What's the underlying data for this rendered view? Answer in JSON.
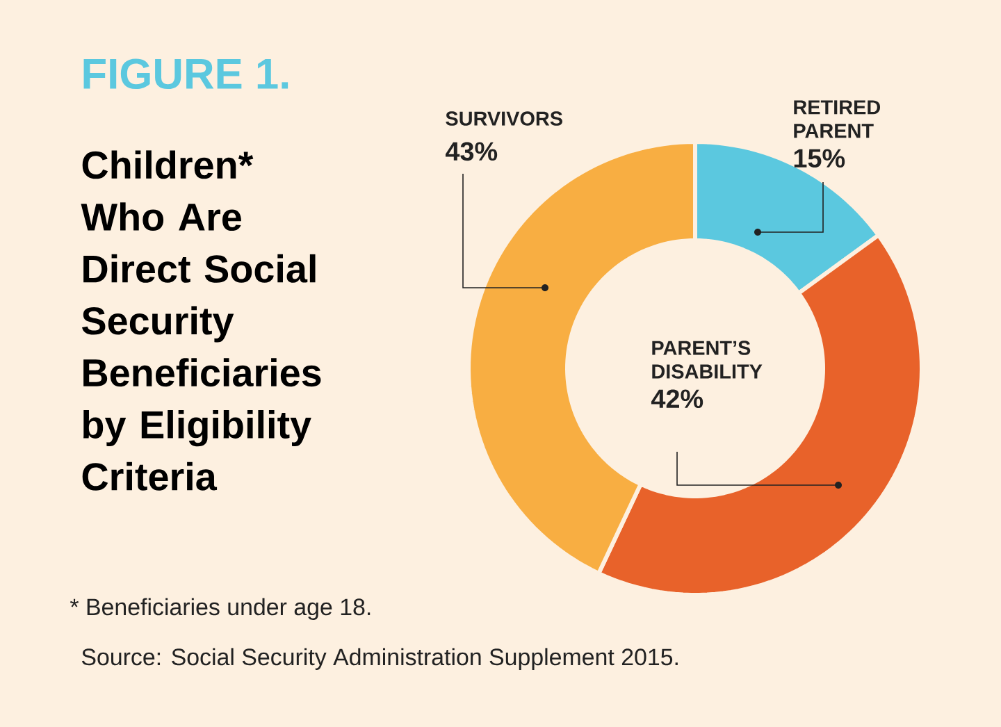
{
  "chart_data": {
    "type": "donut",
    "title": "FIGURE 1.",
    "subtitle": "Children* Who Are Direct Social Security Beneficiaries by Eligibility Criteria",
    "categories": [
      "RETIRED PARENT",
      "PARENT’S DISABILITY",
      "SURVIVORS"
    ],
    "values": [
      15,
      42,
      43
    ],
    "value_labels": [
      "15%",
      "42%",
      "43%"
    ],
    "colors": [
      "#5bc8df",
      "#e8622a",
      "#f8ae42"
    ],
    "annotations": [
      "* Beneficiaries under age 18.",
      "Source: Social Security Administration Supplement 2015."
    ]
  }
}
